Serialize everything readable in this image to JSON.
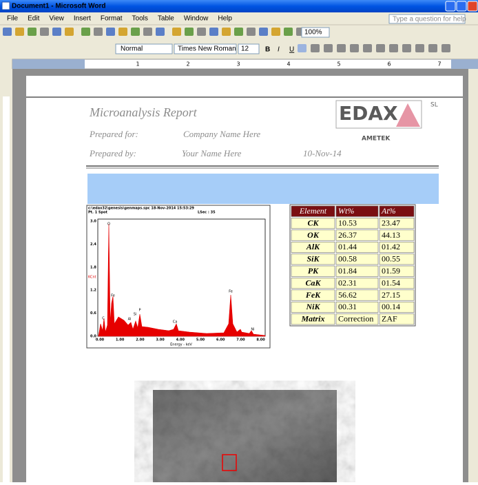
{
  "window": {
    "title": "Document1 - Microsoft Word",
    "menu": [
      "File",
      "Edit",
      "View",
      "Insert",
      "Format",
      "Tools",
      "Table",
      "Window",
      "Help"
    ],
    "help_box": "Type a question for help"
  },
  "toolbar": {
    "zoom": "100%",
    "style": "Normal",
    "font": "Times New Roman",
    "size": "12"
  },
  "ruler": [
    "1",
    "2",
    "3",
    "4",
    "5",
    "6",
    "7"
  ],
  "report": {
    "title": "Microanalysis Report",
    "prepared_for_label": "Prepared for:",
    "prepared_for": "Company Name Here",
    "prepared_by_label": "Prepared by:",
    "prepared_by": "Your Name Here",
    "date": "10-Nov-14",
    "logo": "EDAX",
    "logo_suffix": "SL",
    "company": "AMETEK"
  },
  "spectrum": {
    "file": "c:\\edax32\\genesis\\genmaps.spc 18-Nov-2014 15:53:29",
    "spot": "Pt. 1 Spot",
    "lsec": "LSec : 35",
    "y_label": "KCnt",
    "x_label": "Energy - keV",
    "xticks": [
      "0.00",
      "1.00",
      "2.00",
      "3.00",
      "4.00",
      "5.00",
      "6.00",
      "7.00",
      "8.00"
    ],
    "yticks": [
      "3.0",
      "2.4",
      "1.8",
      "1.2",
      "0.6",
      "0.0"
    ],
    "peaks": [
      "C",
      "O",
      "Fe",
      "Al",
      "Si",
      "P",
      "Ca",
      "Fe",
      "Ni"
    ]
  },
  "table": {
    "header": [
      "Element",
      "Wt%",
      "At%"
    ],
    "rows": [
      [
        "CK",
        "10.53",
        "23.47"
      ],
      [
        "OK",
        "26.37",
        "44.13"
      ],
      [
        "AlK",
        "01.44",
        "01.42"
      ],
      [
        "SiK",
        "00.58",
        "00.55"
      ],
      [
        "PK",
        "01.84",
        "01.59"
      ],
      [
        "CaK",
        "02.31",
        "01.54"
      ],
      [
        "FeK",
        "56.62",
        "27.15"
      ],
      [
        "NiK",
        "00.31",
        "00.14"
      ],
      [
        "Matrix",
        "Correction",
        "ZAF"
      ]
    ]
  }
}
